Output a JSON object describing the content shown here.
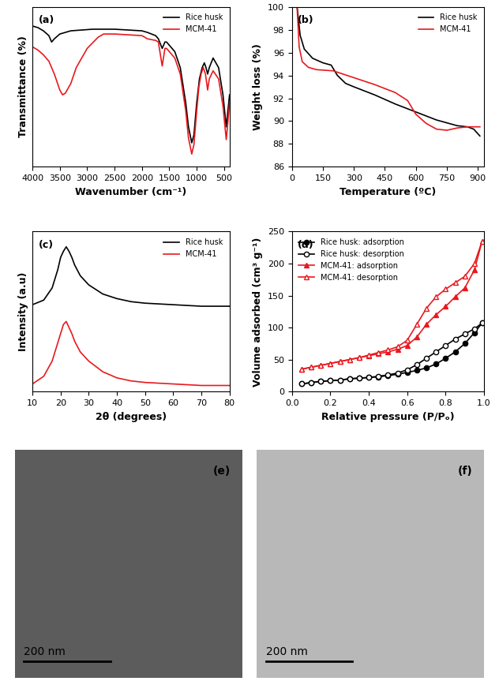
{
  "chart_data": [
    {
      "type": "line",
      "panel_label": "(a)",
      "x_label": "Wavenumber (cm⁻¹)",
      "y_label": "Transmittance (%)",
      "xlim": [
        4000,
        400
      ],
      "xticks": [
        4000,
        3500,
        3000,
        2500,
        2000,
        1500,
        1000,
        500
      ],
      "ylim": [
        0,
        100
      ],
      "yticks": [],
      "tick_labels": "x",
      "legend": "upper right",
      "series": [
        {
          "name": "Rice husk",
          "color": "#000000",
          "line_style": "solid",
          "x": [
            4000,
            3900,
            3800,
            3700,
            3650,
            3600,
            3500,
            3300,
            2900,
            2500,
            2000,
            1900,
            1750,
            1700,
            1630,
            1580,
            1550,
            1400,
            1300,
            1200,
            1150,
            1090,
            1050,
            1000,
            950,
            900,
            860,
            830,
            800,
            770,
            700,
            600,
            520,
            460,
            430,
            400
          ],
          "values": [
            88,
            87,
            85,
            82,
            78,
            80,
            83,
            85,
            86,
            86,
            85,
            84,
            82,
            80,
            74,
            78,
            78,
            72,
            62,
            40,
            25,
            15,
            20,
            40,
            55,
            62,
            65,
            62,
            58,
            62,
            68,
            62,
            45,
            25,
            35,
            45
          ]
        },
        {
          "name": "MCM-41",
          "color": "#e8191e",
          "line_style": "solid",
          "x": [
            4000,
            3900,
            3800,
            3700,
            3600,
            3500,
            3450,
            3400,
            3300,
            3200,
            3000,
            2800,
            2700,
            2500,
            2000,
            1900,
            1750,
            1700,
            1630,
            1580,
            1550,
            1400,
            1300,
            1200,
            1150,
            1090,
            1050,
            1000,
            960,
            920,
            880,
            840,
            800,
            770,
            700,
            600,
            520,
            460,
            430,
            400
          ],
          "values": [
            75,
            73,
            70,
            66,
            58,
            48,
            45,
            46,
            52,
            62,
            74,
            81,
            83,
            83,
            82,
            80,
            79,
            78,
            63,
            74,
            74,
            68,
            58,
            35,
            18,
            8,
            14,
            35,
            50,
            58,
            62,
            58,
            48,
            55,
            60,
            55,
            38,
            17,
            28,
            40
          ]
        }
      ]
    },
    {
      "type": "line",
      "panel_label": "(b)",
      "x_label": "Temperature (ºC)",
      "y_label": "Weight loss (%)",
      "xlim": [
        0,
        930
      ],
      "xticks": [
        0,
        150,
        300,
        450,
        600,
        750,
        900
      ],
      "ylim": [
        86,
        100
      ],
      "yticks": [
        86,
        88,
        90,
        92,
        94,
        96,
        98,
        100
      ],
      "legend": "upper right",
      "series": [
        {
          "name": "Rice husk",
          "color": "#000000",
          "line_style": "solid",
          "x": [
            25,
            40,
            60,
            100,
            150,
            190,
            220,
            260,
            300,
            400,
            500,
            600,
            700,
            800,
            850,
            880,
            910
          ],
          "values": [
            100,
            97.5,
            96.3,
            95.5,
            95.1,
            94.9,
            94.0,
            93.3,
            93.0,
            92.3,
            91.5,
            90.8,
            90.1,
            89.6,
            89.5,
            89.3,
            88.7
          ]
        },
        {
          "name": "MCM-41",
          "color": "#e8191e",
          "line_style": "solid",
          "x": [
            25,
            35,
            50,
            80,
            120,
            200,
            300,
            400,
            500,
            560,
            600,
            650,
            700,
            750,
            800,
            850,
            910
          ],
          "values": [
            100,
            96.5,
            95.2,
            94.7,
            94.5,
            94.4,
            93.8,
            93.2,
            92.5,
            91.8,
            90.6,
            89.8,
            89.3,
            89.2,
            89.4,
            89.5,
            89.5
          ]
        }
      ]
    },
    {
      "type": "line",
      "panel_label": "(c)",
      "x_label": "2θ (degrees)",
      "y_label": "Intensity (a.u)",
      "xlim": [
        10,
        80
      ],
      "xticks": [
        10,
        20,
        30,
        40,
        50,
        60,
        70,
        80
      ],
      "ylim": [
        0,
        105
      ],
      "yticks": [],
      "tick_labels": "x",
      "legend": "upper right",
      "series": [
        {
          "name": "Rice husk",
          "color": "#000000",
          "line_style": "solid",
          "x": [
            10,
            14,
            17,
            19,
            20,
            21,
            22,
            23,
            24,
            25,
            27,
            30,
            35,
            40,
            45,
            50,
            60,
            70,
            80
          ],
          "values": [
            57,
            60,
            68,
            80,
            88,
            92,
            95,
            92,
            88,
            83,
            76,
            70,
            64,
            61,
            59,
            58,
            57,
            56,
            56
          ]
        },
        {
          "name": "MCM-41",
          "color": "#e8191e",
          "line_style": "solid",
          "x": [
            10,
            14,
            17,
            19,
            20,
            21,
            22,
            23,
            24,
            25,
            27,
            30,
            35,
            40,
            45,
            50,
            60,
            70,
            80
          ],
          "values": [
            5,
            10,
            20,
            32,
            38,
            44,
            46,
            42,
            38,
            33,
            26,
            20,
            13,
            9,
            7,
            6,
            5,
            4,
            4
          ]
        }
      ]
    },
    {
      "type": "line",
      "panel_label": "(d)",
      "x_label": "Relative pressure (P/Pₒ)",
      "y_label": "Volume adsorbed (cm³ g⁻¹)",
      "xlim": [
        0,
        1
      ],
      "xticks": [
        {
          "value": 0,
          "label": "0.0"
        },
        {
          "value": 0.2,
          "label": "0.2"
        },
        {
          "value": 0.4,
          "label": "0.4"
        },
        {
          "value": 0.6,
          "label": "0.6"
        },
        {
          "value": 0.8,
          "label": "0.8"
        },
        {
          "value": 1,
          "label": "1.0"
        }
      ],
      "ylim": [
        0,
        250
      ],
      "yticks": [
        0,
        50,
        100,
        150,
        200,
        250
      ],
      "legend": "upper left",
      "series": [
        {
          "name": "Rice husk: adsorption",
          "color": "#000000",
          "line_style": "solid",
          "marker": "filled_circle",
          "x": [
            0.05,
            0.1,
            0.15,
            0.2,
            0.25,
            0.3,
            0.35,
            0.4,
            0.45,
            0.5,
            0.55,
            0.6,
            0.65,
            0.7,
            0.75,
            0.8,
            0.85,
            0.9,
            0.95,
            0.99
          ],
          "values": [
            12,
            14,
            16,
            17,
            18,
            20,
            21,
            22,
            23,
            25,
            27,
            30,
            33,
            37,
            43,
            52,
            62,
            75,
            92,
            107
          ]
        },
        {
          "name": "Rice husk: desorption",
          "color": "#000000",
          "line_style": "solid",
          "marker": "open_circle",
          "x": [
            0.05,
            0.1,
            0.15,
            0.2,
            0.25,
            0.3,
            0.35,
            0.4,
            0.45,
            0.5,
            0.55,
            0.6,
            0.65,
            0.7,
            0.75,
            0.8,
            0.85,
            0.9,
            0.95,
            0.99
          ],
          "values": [
            12,
            14,
            16,
            17,
            18,
            20,
            21,
            22,
            24,
            26,
            29,
            34,
            42,
            52,
            62,
            72,
            82,
            90,
            98,
            107
          ]
        },
        {
          "name": "MCM-41: adsorption",
          "color": "#e8191e",
          "line_style": "solid",
          "marker": "filled_triangle",
          "x": [
            0.05,
            0.1,
            0.15,
            0.2,
            0.25,
            0.3,
            0.35,
            0.4,
            0.45,
            0.5,
            0.55,
            0.6,
            0.65,
            0.7,
            0.75,
            0.8,
            0.85,
            0.9,
            0.95,
            0.99
          ],
          "values": [
            35,
            38,
            41,
            44,
            47,
            50,
            53,
            56,
            59,
            62,
            66,
            72,
            85,
            105,
            120,
            133,
            148,
            162,
            190,
            235
          ]
        },
        {
          "name": "MCM-41: desorption",
          "color": "#e8191e",
          "line_style": "solid",
          "marker": "open_triangle",
          "x": [
            0.05,
            0.1,
            0.15,
            0.2,
            0.25,
            0.3,
            0.35,
            0.4,
            0.45,
            0.5,
            0.55,
            0.6,
            0.65,
            0.7,
            0.75,
            0.8,
            0.85,
            0.9,
            0.95,
            0.99
          ],
          "values": [
            35,
            38,
            41,
            44,
            47,
            50,
            53,
            57,
            61,
            65,
            70,
            80,
            105,
            130,
            148,
            160,
            170,
            180,
            200,
            235
          ]
        }
      ]
    }
  ],
  "images": [
    {
      "panel_label": "(e)",
      "scale_bar": "200 nm"
    },
    {
      "panel_label": "(f)",
      "scale_bar": "200 nm"
    }
  ]
}
